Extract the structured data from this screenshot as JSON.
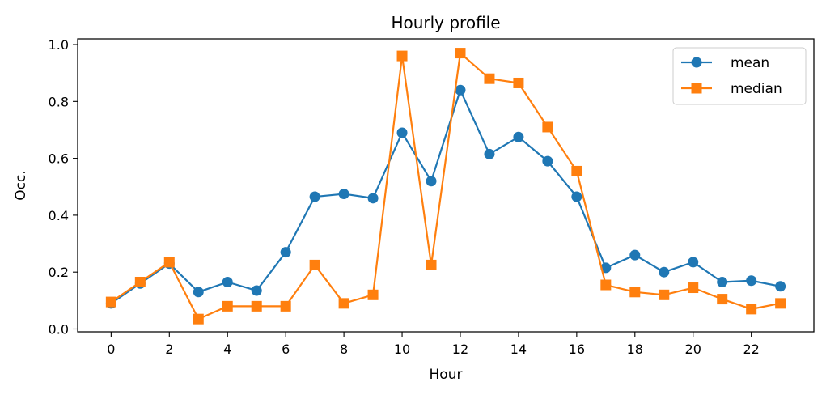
{
  "chart_data": {
    "type": "line",
    "title": "Hourly profile",
    "xlabel": "Hour",
    "ylabel": "Occ.",
    "x": [
      0,
      1,
      2,
      3,
      4,
      5,
      6,
      7,
      8,
      9,
      10,
      11,
      12,
      13,
      14,
      15,
      16,
      17,
      18,
      19,
      20,
      21,
      22,
      23
    ],
    "xlim": [
      -1.15,
      24.15
    ],
    "ylim": [
      -0.01,
      1.02
    ],
    "xticks": [
      0,
      2,
      4,
      6,
      8,
      10,
      12,
      14,
      16,
      18,
      20,
      22
    ],
    "yticks": [
      0.0,
      0.2,
      0.4,
      0.6,
      0.8,
      1.0
    ],
    "xtick_labels": [
      "0",
      "2",
      "4",
      "6",
      "8",
      "10",
      "12",
      "14",
      "16",
      "18",
      "20",
      "22"
    ],
    "ytick_labels": [
      "0.0",
      "0.2",
      "0.4",
      "0.6",
      "0.8",
      "1.0"
    ],
    "grid": false,
    "legend_position": "top-right",
    "series": [
      {
        "name": "mean",
        "color": "#1f77b4",
        "marker": "circle",
        "values": [
          0.09,
          0.16,
          0.23,
          0.13,
          0.165,
          0.135,
          0.27,
          0.465,
          0.475,
          0.46,
          0.69,
          0.52,
          0.84,
          0.615,
          0.675,
          0.59,
          0.465,
          0.215,
          0.26,
          0.2,
          0.235,
          0.165,
          0.17,
          0.15
        ]
      },
      {
        "name": "median",
        "color": "#ff7f0e",
        "marker": "square",
        "values": [
          0.095,
          0.165,
          0.235,
          0.035,
          0.08,
          0.08,
          0.08,
          0.225,
          0.09,
          0.12,
          0.96,
          0.225,
          0.97,
          0.88,
          0.865,
          0.71,
          0.555,
          0.155,
          0.13,
          0.12,
          0.145,
          0.105,
          0.07,
          0.09
        ]
      }
    ]
  }
}
